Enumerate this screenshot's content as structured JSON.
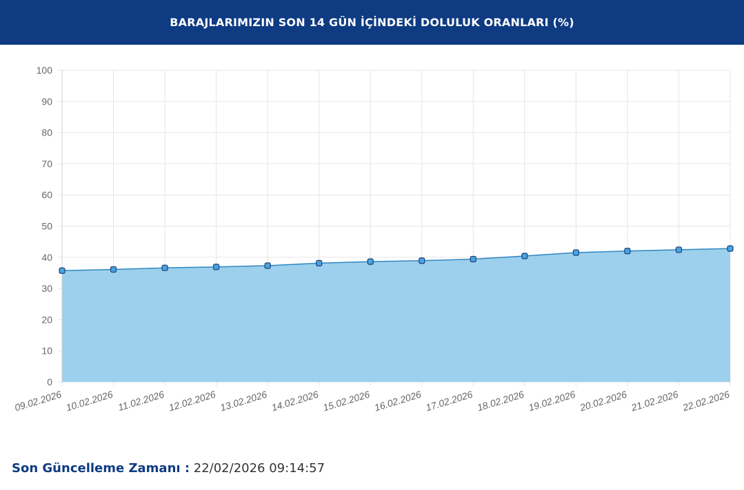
{
  "header": {
    "title": "BARAJLARIMIZIN SON 14 GÜN İÇİNDEKİ DOLULUK ORANLARI (%)"
  },
  "footer": {
    "label": "Son Güncelleme Zamanı :",
    "value": "22/02/2026 09:14:57"
  },
  "colors": {
    "header_bg": "#0e3b82",
    "area_fill": "#9dd0ec",
    "line": "#2e86c1",
    "point_fill": "#4aa3df",
    "point_stroke": "#1b3f7a",
    "grid": "#e5e5e5"
  },
  "chart_data": {
    "type": "area",
    "categories": [
      "09.02.2026",
      "10.02.2026",
      "11.02.2026",
      "12.02.2026",
      "13.02.2026",
      "14.02.2026",
      "15.02.2026",
      "16.02.2026",
      "17.02.2026",
      "18.02.2026",
      "19.02.2026",
      "20.02.2026",
      "21.02.2026",
      "22.02.2026"
    ],
    "series": [
      {
        "values": [
          35.7,
          36.1,
          36.6,
          36.9,
          37.3,
          38.1,
          38.6,
          38.9,
          39.4,
          40.4,
          41.5,
          42.0,
          42.4,
          42.8
        ]
      }
    ],
    "ylim": [
      0,
      100
    ],
    "yticks": [
      0,
      10,
      20,
      30,
      40,
      50,
      60,
      70,
      80,
      90,
      100
    ],
    "grid": true,
    "legend": "none"
  }
}
